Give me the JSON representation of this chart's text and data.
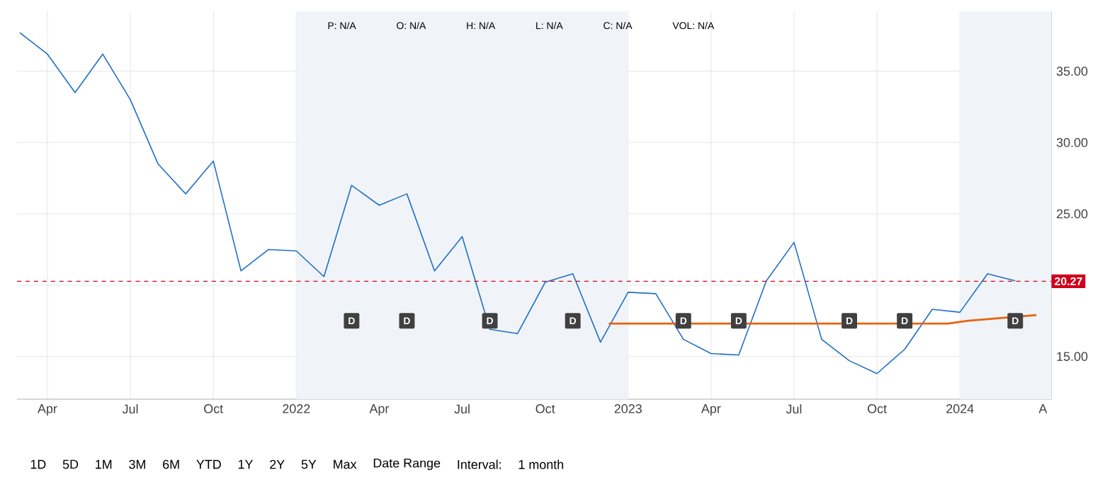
{
  "chart_data": {
    "type": "line",
    "x": [
      "2021-03-01",
      "2021-04-01",
      "2021-05-01",
      "2021-06-01",
      "2021-07-01",
      "2021-08-01",
      "2021-09-01",
      "2021-10-01",
      "2021-11-01",
      "2021-12-01",
      "2022-01-01",
      "2022-02-01",
      "2022-03-01",
      "2022-04-01",
      "2022-05-01",
      "2022-06-01",
      "2022-07-01",
      "2022-08-01",
      "2022-09-01",
      "2022-10-01",
      "2022-11-01",
      "2022-12-01",
      "2023-01-01",
      "2023-02-01",
      "2023-03-01",
      "2023-04-01",
      "2023-05-01",
      "2023-06-01",
      "2023-07-01",
      "2023-08-01",
      "2023-09-01",
      "2023-10-01",
      "2023-11-01",
      "2023-12-01",
      "2024-01-01",
      "2024-02-01",
      "2024-03-01"
    ],
    "series": [
      {
        "color": "#1f6fc5",
        "values": [
          37.7,
          36.2,
          33.5,
          36.2,
          33.0,
          28.5,
          26.4,
          28.7,
          21.0,
          22.5,
          22.4,
          20.6,
          27.0,
          25.6,
          26.4,
          21.0,
          23.4,
          16.9,
          16.6,
          20.2,
          20.8,
          16.0,
          19.5,
          19.4,
          16.2,
          15.2,
          15.1,
          20.3,
          23.0,
          16.2,
          14.7,
          13.8,
          15.5,
          18.3,
          18.1,
          20.8,
          20.3
        ]
      },
      {
        "color": "#e8620c",
        "x": [
          "2022-12-10",
          "2023-12-18",
          "2024-01-10",
          "2024-03-24"
        ],
        "values": [
          17.3,
          17.3,
          17.5,
          17.9
        ]
      }
    ],
    "xlim": [
      "2021-02-28",
      "2024-04-10"
    ],
    "xticks": [
      {
        "value": "2021-04-01",
        "label": "Apr"
      },
      {
        "value": "2021-07-01",
        "label": "Jul"
      },
      {
        "value": "2021-10-01",
        "label": "Oct"
      },
      {
        "value": "2022-01-01",
        "label": "2022"
      },
      {
        "value": "2022-04-01",
        "label": "Apr"
      },
      {
        "value": "2022-07-01",
        "label": "Jul"
      },
      {
        "value": "2022-10-01",
        "label": "Oct"
      },
      {
        "value": "2023-01-01",
        "label": "2023"
      },
      {
        "value": "2023-04-01",
        "label": "Apr"
      },
      {
        "value": "2023-07-01",
        "label": "Jul"
      },
      {
        "value": "2023-10-01",
        "label": "Oct"
      },
      {
        "value": "2024-01-01",
        "label": "2024"
      },
      {
        "value": "2024-04-01",
        "label": "A"
      }
    ],
    "ylim": [
      12,
      39.2
    ],
    "yticks": [
      {
        "value": 15,
        "label": "15.00"
      },
      {
        "value": 20,
        "label": null
      },
      {
        "value": 25,
        "label": "25.00"
      },
      {
        "value": 30,
        "label": "30.00"
      },
      {
        "value": 35,
        "label": "35.00"
      }
    ],
    "grid": true,
    "ref_lines": [
      {
        "axis": "y",
        "value": 20.27,
        "label": "20.27",
        "color": "#d0021b",
        "line_style": "dashed"
      }
    ],
    "bands": [
      {
        "axis": "x",
        "from": "2022-01-01",
        "to": "2023-01-01",
        "color": "#f0f4f8"
      },
      {
        "axis": "x",
        "from": "2024-01-01",
        "to": "2024-04-10",
        "color": "#f0f4f8"
      }
    ],
    "annotations": [
      "P: N/A",
      "O: N/A",
      "H: N/A",
      "L: N/A",
      "C: N/A",
      "VOL: N/A",
      "1D",
      "5D",
      "1M",
      "3M",
      "6M",
      "YTD",
      "1Y",
      "2Y",
      "5Y",
      "Max",
      "Date Range",
      "Interval:",
      "1 month",
      {
        "text": "D",
        "x": "2022-03-01",
        "y": 17.5
      },
      {
        "text": "D",
        "x": "2022-05-01",
        "y": 17.5
      },
      {
        "text": "D",
        "x": "2022-08-01",
        "y": 17.5
      },
      {
        "text": "D",
        "x": "2022-11-01",
        "y": 17.5
      },
      {
        "text": "D",
        "x": "2023-03-01",
        "y": 17.5
      },
      {
        "text": "D",
        "x": "2023-05-01",
        "y": 17.5
      },
      {
        "text": "D",
        "x": "2023-09-01",
        "y": 17.5
      },
      {
        "text": "D",
        "x": "2023-11-01",
        "y": 17.5
      },
      {
        "text": "D",
        "x": "2024-03-01",
        "y": 17.5
      }
    ]
  }
}
